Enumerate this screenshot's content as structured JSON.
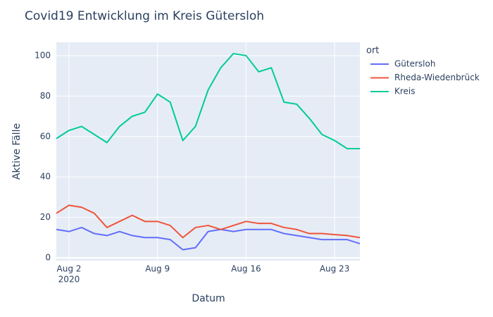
{
  "chart_data": {
    "type": "line",
    "title": "Covid19 Entwicklung im Kreis Gütersloh",
    "x_label": "Datum",
    "y_label": "Aktive Fälle",
    "legend_title": "ort",
    "legend_position": "right",
    "x": [
      "2020-08-01",
      "2020-08-02",
      "2020-08-03",
      "2020-08-04",
      "2020-08-05",
      "2020-08-06",
      "2020-08-07",
      "2020-08-08",
      "2020-08-09",
      "2020-08-10",
      "2020-08-11",
      "2020-08-12",
      "2020-08-13",
      "2020-08-14",
      "2020-08-15",
      "2020-08-16",
      "2020-08-17",
      "2020-08-18",
      "2020-08-19",
      "2020-08-20",
      "2020-08-21",
      "2020-08-22",
      "2020-08-23",
      "2020-08-24",
      "2020-08-25"
    ],
    "xlim": [
      "2020-08-01",
      "2020-08-25"
    ],
    "xticks": [
      {
        "value": "2020-08-02",
        "label": "Aug 2"
      },
      {
        "value": "2020-08-09",
        "label": "Aug 9"
      },
      {
        "value": "2020-08-16",
        "label": "Aug 16"
      },
      {
        "value": "2020-08-23",
        "label": "Aug 23"
      }
    ],
    "x_year_label": "2020",
    "ylim": [
      -1.4,
      106.6
    ],
    "yticks": [
      0,
      20,
      40,
      60,
      80,
      100
    ],
    "grid": true,
    "series": [
      {
        "name": "Gütersloh",
        "color": "#636efa",
        "values": [
          14,
          13,
          15,
          12,
          11,
          13,
          11,
          10,
          10,
          9,
          4,
          5,
          13,
          14,
          13,
          14,
          14,
          14,
          12,
          11,
          10,
          9,
          9,
          9,
          7
        ]
      },
      {
        "name": "Rheda-Wiedenbrück",
        "color": "#EF553B",
        "values": [
          22,
          26,
          25,
          22,
          15,
          18,
          21,
          18,
          18,
          16,
          10,
          15,
          16,
          14,
          16,
          18,
          17,
          17,
          15,
          14,
          12,
          12,
          11.5,
          11,
          10
        ]
      },
      {
        "name": "Kreis",
        "color": "#00cc96",
        "values": [
          59,
          63,
          65,
          61,
          57,
          65,
          70,
          72,
          81,
          77,
          58,
          65,
          83,
          94,
          101,
          100,
          92,
          94,
          77,
          76,
          69,
          61,
          58,
          54,
          54
        ]
      }
    ]
  }
}
